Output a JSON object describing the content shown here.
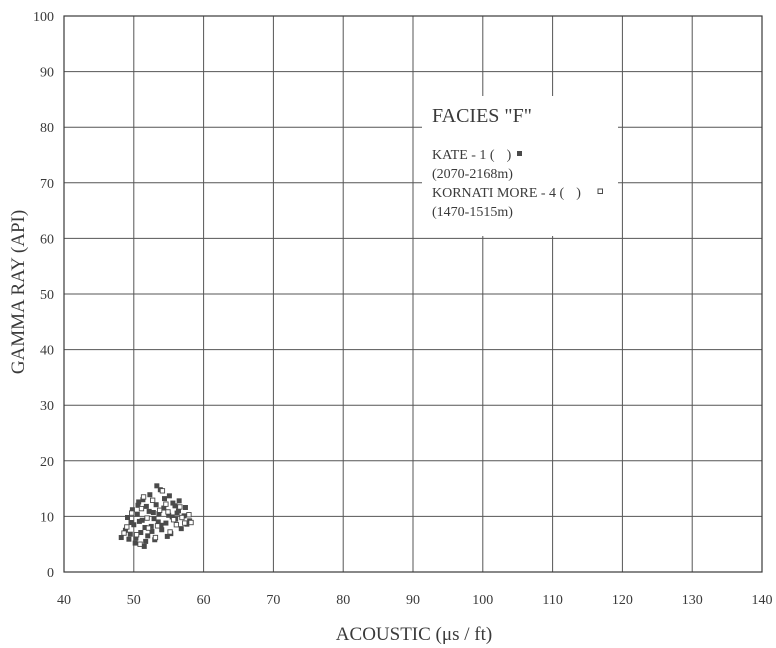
{
  "chart_data": {
    "type": "scatter",
    "xlabel": "ACOUSTIC  (μs / ft)",
    "ylabel": "GAMMA RAY (API)",
    "xlim": [
      40,
      140
    ],
    "ylim": [
      0,
      100
    ],
    "x_ticks": [
      "40",
      "50",
      "60",
      "70",
      "80",
      "90",
      "100",
      "110",
      "120",
      "130",
      "140"
    ],
    "y_ticks": [
      "0",
      "10",
      "20",
      "30",
      "40",
      "50",
      "60",
      "70",
      "80",
      "90",
      "100"
    ],
    "grid": true,
    "legend": {
      "placement": "top-center",
      "title": "FACIES  \"F\"",
      "lines": [
        "KATE - 1  (",
        ")",
        "(2070-2168m)",
        "KORNATI MORE - 4  (",
        ")",
        "(1470-1515m)"
      ]
    },
    "series": [
      {
        "name": "KATE - 1",
        "marker": "filled-square",
        "x": [
          48.2,
          48.8,
          49.1,
          49.5,
          49.8,
          50.0,
          50.2,
          50.5,
          50.7,
          51.0,
          51.2,
          51.5,
          51.8,
          52.0,
          52.3,
          52.5,
          52.8,
          53.0,
          53.2,
          53.5,
          53.8,
          54.0,
          54.3,
          54.6,
          55.0,
          55.3,
          55.6,
          56.0,
          56.4,
          56.8,
          57.2,
          57.6,
          58.0,
          49.3,
          50.3,
          51.3,
          52.2,
          53.3,
          54.4,
          55.5,
          56.5,
          57.4,
          50.8,
          51.6,
          52.6,
          53.6,
          54.8,
          55.9,
          49.6,
          50.6,
          51.7,
          52.9,
          53.9,
          55.1,
          56.2
        ],
        "y": [
          6.2,
          7.5,
          9.8,
          6.8,
          11.2,
          8.5,
          5.2,
          10.4,
          12.6,
          7.1,
          9.3,
          4.6,
          11.8,
          6.5,
          13.9,
          8.2,
          10.7,
          5.8,
          12.1,
          9.0,
          14.8,
          7.6,
          11.5,
          8.8,
          10.2,
          6.9,
          12.4,
          9.5,
          11.0,
          7.8,
          10.1,
          8.6,
          9.2,
          5.9,
          6.1,
          13.0,
          10.9,
          15.5,
          13.2,
          9.9,
          12.8,
          11.6,
          9.1,
          8.0,
          7.3,
          10.5,
          6.4,
          11.9,
          8.9,
          12.0,
          5.5,
          9.6,
          8.4,
          13.7,
          10.6
        ]
      },
      {
        "name": "KORNATI MORE - 4",
        "marker": "open-square",
        "x": [
          49.0,
          49.7,
          50.4,
          51.1,
          51.9,
          52.7,
          53.4,
          54.1,
          54.9,
          55.7,
          56.6,
          57.3,
          57.9,
          50.9,
          52.1,
          53.7,
          55.2,
          56.9,
          51.4,
          53.1,
          54.6,
          56.1,
          48.6,
          58.2
        ],
        "y": [
          8.1,
          10.6,
          6.7,
          11.4,
          9.7,
          12.9,
          8.3,
          14.6,
          10.8,
          9.4,
          11.7,
          8.8,
          10.3,
          5.0,
          7.9,
          11.1,
          7.2,
          9.8,
          13.5,
          6.2,
          12.2,
          8.5,
          7.0,
          8.9
        ]
      }
    ]
  }
}
